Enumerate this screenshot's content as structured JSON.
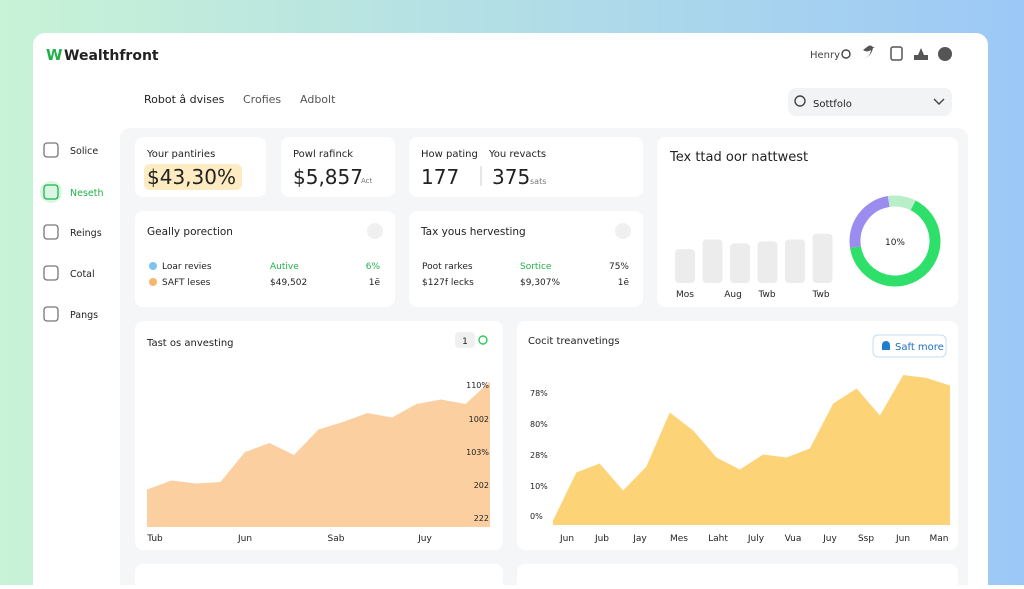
{
  "header": {
    "logo": "W",
    "brand": "Wealthfront",
    "user": "Henry"
  },
  "nav": {
    "tabs": [
      "Robot â dvises",
      "Crofies",
      "Adbolt"
    ],
    "search": "Sottfolo"
  },
  "sidebar": [
    "Solice",
    "Neseth",
    "Reings",
    "Cotal",
    "Pangs"
  ],
  "stats": [
    {
      "label": "Your pantiries",
      "value": "$43,30%"
    },
    {
      "label": "Powl rafinck",
      "value": "$5,857",
      "unit": "Act"
    },
    {
      "label": "How pating",
      "value": "177"
    },
    {
      "label": "You revacts",
      "value": "375",
      "unit": "sats"
    }
  ],
  "lists": [
    {
      "title": "Geally porection",
      "rows": [
        [
          "Loar revies",
          "Autive",
          "6%"
        ],
        [
          "SAFT leses",
          "$49,502",
          "1ē"
        ]
      ]
    },
    {
      "title": "Tax yous hervesting",
      "rows": [
        [
          "Poot rarkes",
          "Sortice",
          "75%"
        ],
        [
          "$127f lecks",
          "$9,307%",
          "1ē"
        ]
      ]
    }
  ],
  "overview": {
    "title": "Tex ttad oor nattwest",
    "bars": [
      35,
      45,
      41,
      43,
      45,
      51
    ],
    "ylim": [
      0,
      60
    ],
    "bar_labels": [
      "Mos",
      "Aug",
      "Twb",
      "Twb"
    ],
    "donut": {
      "label": "10%",
      "values": [
        25,
        10,
        65
      ],
      "colors": [
        "#9b8cf0",
        "#b8eec8",
        "#2ee06a"
      ]
    }
  },
  "charts": [
    {
      "title": "Tast os anvesting",
      "button": "1",
      "y_labels": [
        "110%",
        "1002",
        "103%",
        "202",
        "222"
      ],
      "x_labels": [
        "Tub",
        "Jun",
        "Sab",
        "Juy"
      ],
      "values": [
        25,
        31,
        29,
        30,
        50,
        56,
        48,
        65,
        70,
        76,
        73,
        82,
        85,
        82,
        97
      ],
      "ylim": [
        0,
        100
      ],
      "color": "#fbcf9f"
    },
    {
      "title": "Cocit treanvetings",
      "button": "Saft more",
      "y_labels": [
        "78%",
        "80%",
        "28%",
        "10%",
        "0%"
      ],
      "x_labels": [
        "Jun",
        "Jub",
        "Jay",
        "Mes",
        "Laht",
        "July",
        "Vua",
        "Juy",
        "Ssp",
        "Jun",
        "Man"
      ],
      "values": [
        3,
        35,
        41,
        23,
        39,
        75,
        63,
        45,
        37,
        47,
        45,
        51,
        81,
        91,
        73,
        100,
        98,
        93
      ],
      "ylim": [
        0,
        100
      ],
      "color": "#fcd477"
    }
  ]
}
